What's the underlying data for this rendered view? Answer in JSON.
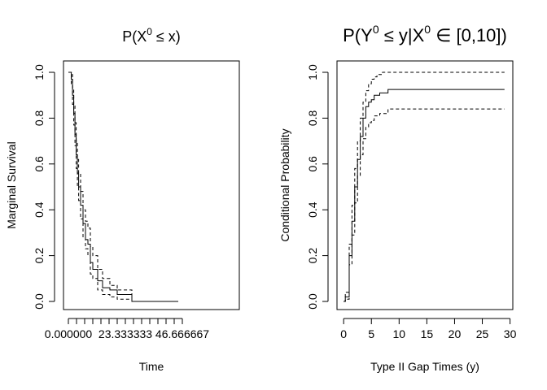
{
  "chart_data": [
    {
      "type": "line",
      "title_parts": {
        "pre": "P(X",
        "sup": "0",
        "post": " ≤ x)"
      },
      "xlabel": "Time",
      "ylabel": "Marginal Survival",
      "xlim": [
        -2,
        70
      ],
      "ylim": [
        0,
        1
      ],
      "x_ticks": [
        0,
        23.333333,
        46.666667
      ],
      "x_tick_labels": [
        "0.000000",
        "23.333333",
        "46.666667"
      ],
      "x_minor_ticks": [
        0,
        3.333333,
        6.666667,
        10,
        13.333333,
        16.666667,
        20,
        23.333333,
        26.666667,
        30,
        33.333333,
        36.666667,
        40,
        43.333333,
        46.666667
      ],
      "y_ticks": [
        0,
        0.2,
        0.4,
        0.6,
        0.8,
        1
      ],
      "y_tick_labels": [
        "0.0",
        "0.2",
        "0.4",
        "0.6",
        "0.8",
        "1.0"
      ],
      "series": [
        {
          "style": "solid",
          "x": [
            0,
            0.7,
            1.2,
            1.7,
            2.2,
            2.7,
            3.2,
            3.7,
            4.2,
            5,
            6,
            7,
            8,
            9,
            10,
            12,
            14,
            17,
            20,
            26,
            45
          ],
          "y": [
            1,
            1,
            0.97,
            0.9,
            0.82,
            0.73,
            0.64,
            0.56,
            0.5,
            0.42,
            0.34,
            0.27,
            0.25,
            0.17,
            0.14,
            0.09,
            0.06,
            0.05,
            0.03,
            0.0,
            0.0
          ]
        },
        {
          "style": "dashed",
          "x": [
            0,
            0.7,
            1.2,
            1.7,
            2.2,
            2.7,
            3.2,
            3.7,
            4.2,
            5,
            6,
            7,
            8,
            9,
            10,
            12,
            14,
            17,
            20,
            26,
            45
          ],
          "y": [
            1,
            1,
            0.99,
            0.93,
            0.86,
            0.78,
            0.7,
            0.62,
            0.56,
            0.48,
            0.4,
            0.35,
            0.32,
            0.24,
            0.2,
            0.14,
            0.1,
            0.07,
            0.05,
            0.0,
            0.0
          ]
        },
        {
          "style": "dashed",
          "x": [
            0,
            0.7,
            1.2,
            1.7,
            2.2,
            2.7,
            3.2,
            3.7,
            4.2,
            5,
            6,
            7,
            8,
            9,
            10,
            12,
            14,
            17,
            20,
            26,
            45
          ],
          "y": [
            1,
            1,
            0.95,
            0.86,
            0.77,
            0.68,
            0.58,
            0.5,
            0.44,
            0.36,
            0.28,
            0.23,
            0.2,
            0.12,
            0.1,
            0.05,
            0.03,
            0.02,
            0.01,
            0.0,
            0.0
          ]
        }
      ]
    },
    {
      "type": "line",
      "title_parts": {
        "pre": "P(Y",
        "sup": "0",
        "mid": " ≤ y|X",
        "sup2": "0",
        "post": " ∈ [0,10])"
      },
      "xlabel": "Type II Gap Times (y)",
      "ylabel": "Conditional Probability",
      "xlim": [
        -1.2,
        30.5
      ],
      "ylim": [
        0,
        1
      ],
      "x_ticks": [
        0,
        5,
        10,
        15,
        20,
        25,
        30
      ],
      "x_tick_labels": [
        "0",
        "5",
        "10",
        "15",
        "20",
        "25",
        "30"
      ],
      "y_ticks": [
        0,
        0.2,
        0.4,
        0.6,
        0.8,
        1
      ],
      "y_tick_labels": [
        "0.0",
        "0.2",
        "0.4",
        "0.6",
        "0.8",
        "1.0"
      ],
      "series": [
        {
          "style": "solid",
          "x": [
            0,
            0.3,
            1,
            1.5,
            2,
            2.5,
            3,
            3.5,
            4,
            4.5,
            5,
            5.5,
            6,
            6.5,
            7,
            7.5,
            8,
            29
          ],
          "y": [
            0,
            0.02,
            0.2,
            0.35,
            0.5,
            0.62,
            0.72,
            0.8,
            0.85,
            0.87,
            0.88,
            0.9,
            0.9,
            0.91,
            0.91,
            0.91,
            0.925,
            0.925
          ]
        },
        {
          "style": "dashed",
          "x": [
            0,
            0.3,
            1,
            1.5,
            2,
            2.5,
            3,
            3.5,
            4,
            4.5,
            5,
            5.5,
            6,
            6.5,
            7,
            7.5,
            8,
            29
          ],
          "y": [
            0,
            0.04,
            0.25,
            0.42,
            0.58,
            0.7,
            0.8,
            0.87,
            0.92,
            0.95,
            0.97,
            0.98,
            0.99,
            0.99,
            1.0,
            1.0,
            1.0,
            1.0
          ]
        },
        {
          "style": "dashed",
          "x": [
            0,
            0.3,
            1,
            1.5,
            2,
            2.5,
            3,
            3.5,
            4,
            4.5,
            5,
            5.5,
            6,
            6.5,
            7,
            7.5,
            8,
            29
          ],
          "y": [
            0,
            0.01,
            0.16,
            0.29,
            0.43,
            0.55,
            0.64,
            0.71,
            0.76,
            0.78,
            0.79,
            0.81,
            0.81,
            0.82,
            0.82,
            0.82,
            0.84,
            0.84
          ]
        }
      ]
    }
  ]
}
